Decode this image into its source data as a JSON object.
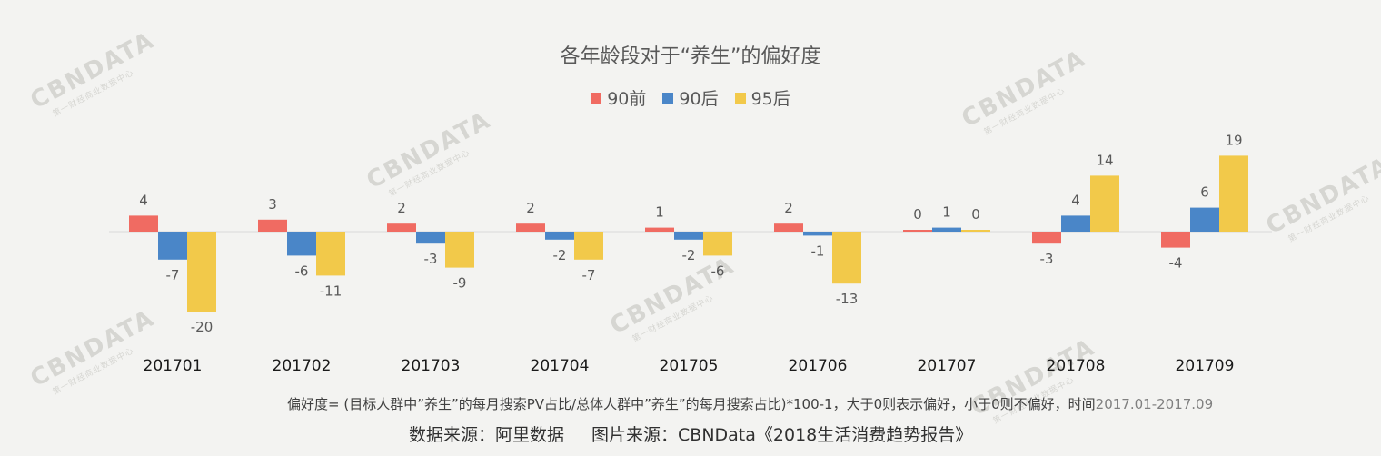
{
  "watermark": {
    "text": "CBNDATA",
    "subtitle": "第一财经商业数据中心"
  },
  "chart_data": {
    "type": "bar",
    "title": "各年龄段对于“养生”的偏好度",
    "categories": [
      "201701",
      "201702",
      "201703",
      "201704",
      "201705",
      "201706",
      "201707",
      "201708",
      "201709"
    ],
    "series": [
      {
        "name": "90前",
        "color": "#f06b62",
        "values": [
          4,
          3,
          2,
          2,
          1,
          2,
          0,
          -3,
          -4
        ]
      },
      {
        "name": "90后",
        "color": "#4a86c8",
        "values": [
          -7,
          -6,
          -3,
          -2,
          -2,
          -1,
          1,
          4,
          6
        ]
      },
      {
        "name": "95后",
        "color": "#f2c94a",
        "values": [
          -20,
          -11,
          -9,
          -7,
          -6,
          -13,
          0,
          14,
          19
        ]
      }
    ],
    "xlabel": "",
    "ylabel": "",
    "ylim": [
      -20,
      19
    ],
    "grid": false,
    "legend": "top-center"
  },
  "footnote": {
    "text": "偏好度= (目标人群中”养生”的每月搜索PV占比/总体人群中”养生”的每月搜索占比)*100-1，大于0则表示偏好，小于0则不偏好，时间",
    "period": "2017.01-2017.09"
  },
  "source": {
    "data_source": "数据来源：阿里数据",
    "image_source": "图片来源：CBNData《2018生活消费趋势报告》"
  }
}
